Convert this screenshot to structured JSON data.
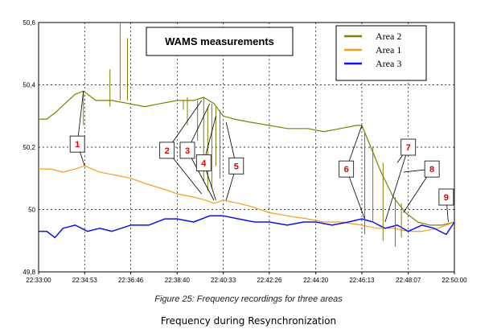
{
  "chart_data": {
    "type": "line",
    "title": "WAMS measurements",
    "ylim": [
      49.8,
      50.6
    ],
    "yticks": [
      "49,8",
      "50",
      "50,2",
      "50,4",
      "50,6"
    ],
    "xticks": [
      "22:33:00",
      "22:34:53",
      "22:36:46",
      "22:38:40",
      "22:40:33",
      "22:42:26",
      "22:44:20",
      "22:46:13",
      "22:48:07",
      "22:50:00"
    ],
    "grid": true,
    "legend_position": "top-right",
    "series": [
      {
        "name": "Area 2",
        "color": "#808000",
        "x": [
          "22:33:00",
          "22:33:20",
          "22:33:40",
          "22:34:05",
          "22:34:30",
          "22:34:50",
          "22:35:20",
          "22:36:00",
          "22:36:40",
          "22:37:20",
          "22:38:00",
          "22:38:40",
          "22:39:20",
          "22:39:45",
          "22:40:10",
          "22:40:33",
          "22:41:00",
          "22:41:40",
          "22:42:26",
          "22:43:10",
          "22:44:00",
          "22:44:40",
          "22:45:20",
          "22:46:00",
          "22:46:13",
          "22:46:35",
          "22:47:00",
          "22:47:30",
          "22:48:00",
          "22:48:30",
          "22:49:00",
          "22:49:30",
          "22:50:00"
        ],
        "values": [
          50.29,
          50.29,
          50.31,
          50.34,
          50.37,
          50.38,
          50.35,
          50.35,
          50.34,
          50.33,
          50.34,
          50.35,
          50.35,
          50.36,
          50.34,
          50.3,
          50.29,
          50.28,
          50.27,
          50.26,
          50.26,
          50.25,
          50.26,
          50.27,
          50.27,
          50.2,
          50.12,
          50.04,
          49.99,
          49.96,
          49.95,
          49.95,
          49.96
        ]
      },
      {
        "name": "Area 1",
        "color": "#f0a020",
        "x": [
          "22:33:00",
          "22:33:30",
          "22:34:00",
          "22:34:30",
          "22:34:53",
          "22:35:30",
          "22:36:10",
          "22:36:46",
          "22:37:30",
          "22:38:20",
          "22:38:40",
          "22:39:20",
          "22:39:50",
          "22:40:10",
          "22:40:33",
          "22:41:10",
          "22:41:40",
          "22:42:26",
          "22:43:10",
          "22:44:00",
          "22:44:40",
          "22:45:20",
          "22:46:13",
          "22:46:50",
          "22:47:30",
          "22:48:07",
          "22:48:40",
          "22:49:20",
          "22:50:00"
        ],
        "values": [
          50.13,
          50.13,
          50.12,
          50.13,
          50.14,
          50.12,
          50.11,
          50.1,
          50.08,
          50.06,
          50.05,
          50.04,
          50.03,
          50.02,
          50.03,
          50.02,
          50.01,
          49.99,
          49.98,
          49.97,
          49.96,
          49.96,
          49.95,
          49.94,
          49.94,
          49.93,
          49.93,
          49.94,
          49.96
        ]
      },
      {
        "name": "Area 3",
        "color": "#1010ee",
        "x": [
          "22:33:00",
          "22:33:20",
          "22:33:40",
          "22:34:00",
          "22:34:30",
          "22:35:00",
          "22:35:30",
          "22:36:00",
          "22:36:46",
          "22:37:30",
          "22:38:10",
          "22:38:40",
          "22:39:20",
          "22:40:00",
          "22:40:33",
          "22:41:10",
          "22:41:50",
          "22:42:26",
          "22:43:10",
          "22:43:50",
          "22:44:20",
          "22:45:00",
          "22:45:40",
          "22:46:13",
          "22:46:40",
          "22:47:10",
          "22:47:40",
          "22:48:07",
          "22:48:40",
          "22:49:10",
          "22:49:40",
          "22:50:00"
        ],
        "values": [
          49.93,
          49.93,
          49.91,
          49.94,
          49.95,
          49.93,
          49.94,
          49.93,
          49.95,
          49.95,
          49.97,
          49.97,
          49.96,
          49.98,
          49.98,
          49.97,
          49.96,
          49.96,
          49.95,
          49.96,
          49.96,
          49.95,
          49.96,
          49.97,
          49.96,
          49.94,
          49.95,
          49.93,
          49.95,
          49.94,
          49.92,
          49.96
        ]
      }
    ],
    "spikes": [
      {
        "x": "22:34:50",
        "from": 50.38,
        "to": 50.27
      },
      {
        "x": "22:35:55",
        "from": 50.33,
        "to": 50.45
      },
      {
        "x": "22:36:20",
        "from": 50.35,
        "to": 50.6
      },
      {
        "x": "22:36:38",
        "from": 50.35,
        "to": 50.55
      },
      {
        "x": "22:38:55",
        "from": 50.35,
        "to": 50.32
      },
      {
        "x": "22:39:05",
        "from": 50.36,
        "to": 50.27
      },
      {
        "x": "22:39:30",
        "from": 50.35,
        "to": 50.22
      },
      {
        "x": "22:39:45",
        "from": 50.36,
        "to": 50.09
      },
      {
        "x": "22:39:55",
        "from": 50.33,
        "to": 50.06
      },
      {
        "x": "22:40:05",
        "from": 50.34,
        "to": 50.07
      },
      {
        "x": "22:40:15",
        "from": 50.33,
        "to": 50.14
      },
      {
        "x": "22:40:25",
        "from": 50.32,
        "to": 50.1
      },
      {
        "x": "22:46:20",
        "from": 50.25,
        "to": 49.92
      },
      {
        "x": "22:46:40",
        "from": 50.2,
        "to": 49.96
      },
      {
        "x": "22:47:05",
        "from": 50.15,
        "to": 49.9
      },
      {
        "x": "22:47:35",
        "from": 50.04,
        "to": 49.88
      },
      {
        "x": "22:47:50",
        "from": 50.02,
        "to": 49.91
      }
    ],
    "annotations": [
      {
        "label": "1",
        "x": "22:34:35",
        "y": 50.21,
        "targets": [
          {
            "x": "22:34:50",
            "y": 50.38
          },
          {
            "x": "22:34:53",
            "y": 50.14
          }
        ]
      },
      {
        "label": "2",
        "x": "22:38:15",
        "y": 50.19,
        "targets": [
          {
            "x": "22:39:40",
            "y": 50.35
          },
          {
            "x": "22:39:40",
            "y": 50.05
          }
        ]
      },
      {
        "label": "3",
        "x": "22:39:05",
        "y": 50.19,
        "targets": [
          {
            "x": "22:40:00",
            "y": 50.34
          },
          {
            "x": "22:40:10",
            "y": 50.03
          }
        ]
      },
      {
        "label": "4",
        "x": "22:39:45",
        "y": 50.15,
        "targets": [
          {
            "x": "22:40:15",
            "y": 50.3
          },
          {
            "x": "22:40:15",
            "y": 50.03
          }
        ]
      },
      {
        "label": "5",
        "x": "22:41:05",
        "y": 50.14,
        "targets": [
          {
            "x": "22:40:40",
            "y": 50.28
          },
          {
            "x": "22:40:40",
            "y": 50.03
          }
        ]
      },
      {
        "label": "6",
        "x": "22:45:35",
        "y": 50.13,
        "targets": [
          {
            "x": "22:46:13",
            "y": 50.27
          },
          {
            "x": "22:46:20",
            "y": 49.97
          }
        ]
      },
      {
        "label": "7",
        "x": "22:48:07",
        "y": 50.2,
        "targets": [
          {
            "x": "22:47:40",
            "y": 50.15
          },
          {
            "x": "22:47:10",
            "y": 49.96
          }
        ]
      },
      {
        "label": "8",
        "x": "22:49:05",
        "y": 50.13,
        "targets": [
          {
            "x": "22:47:55",
            "y": 50.12
          },
          {
            "x": "22:47:55",
            "y": 49.99
          }
        ]
      },
      {
        "label": "9",
        "x": "22:49:40",
        "y": 50.04,
        "targets": [
          {
            "x": "22:49:45",
            "y": 49.96
          }
        ]
      }
    ]
  },
  "caption": "Figure 25: Frequency recordings for three areas",
  "subcaption": "Frequency during Resynchronization"
}
